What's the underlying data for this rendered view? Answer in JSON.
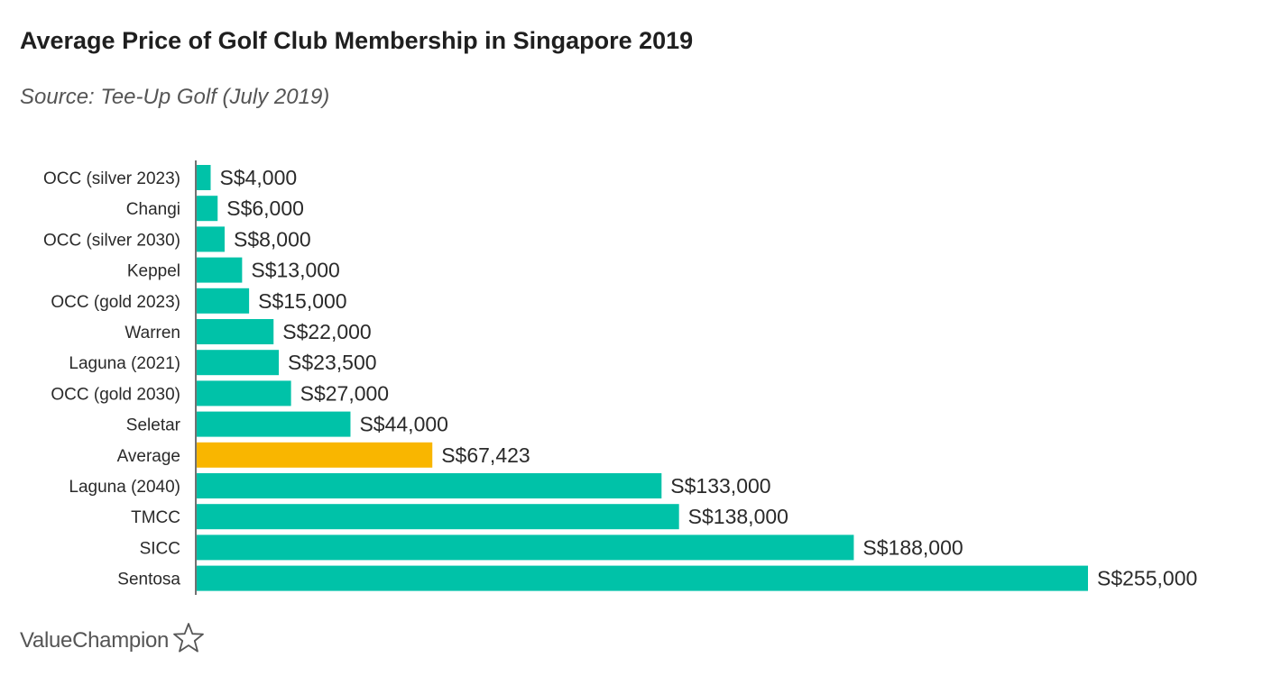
{
  "header": {
    "title": "Average Price of Golf Club Membership in Singapore 2019",
    "subtitle": "Source: Tee-Up Golf (July 2019)"
  },
  "brand": {
    "name": "ValueChampion",
    "icon": "star-outline-icon"
  },
  "colors": {
    "bar": "#00c2a8",
    "highlight": "#f9b600",
    "axis": "#444444"
  },
  "chart_data": {
    "type": "bar",
    "orientation": "horizontal",
    "title": "Average Price of Golf Club Membership in Singapore 2019",
    "subtitle": "Source: Tee-Up Golf (July 2019)",
    "xlabel": "",
    "ylabel": "",
    "grid": false,
    "xlim": [
      0,
      255000
    ],
    "categories": [
      "OCC (silver 2023)",
      "Changi",
      "OCC (silver 2030)",
      "Keppel",
      "OCC (gold 2023)",
      "Warren",
      "Laguna (2021)",
      "OCC (gold 2030)",
      "Seletar",
      "Average",
      "Laguna (2040)",
      "TMCC",
      "SICC",
      "Sentosa"
    ],
    "values": [
      4000,
      6000,
      8000,
      13000,
      15000,
      22000,
      23500,
      27000,
      44000,
      67423,
      133000,
      138000,
      188000,
      255000
    ],
    "data_labels": [
      "S$4,000",
      "S$6,000",
      "S$8,000",
      "S$13,000",
      "S$15,000",
      "S$22,000",
      "S$23,500",
      "S$27,000",
      "S$44,000",
      "S$67,423",
      "S$133,000",
      "S$138,000",
      "S$188,000",
      "S$255,000"
    ],
    "highlighted_category": "Average"
  }
}
